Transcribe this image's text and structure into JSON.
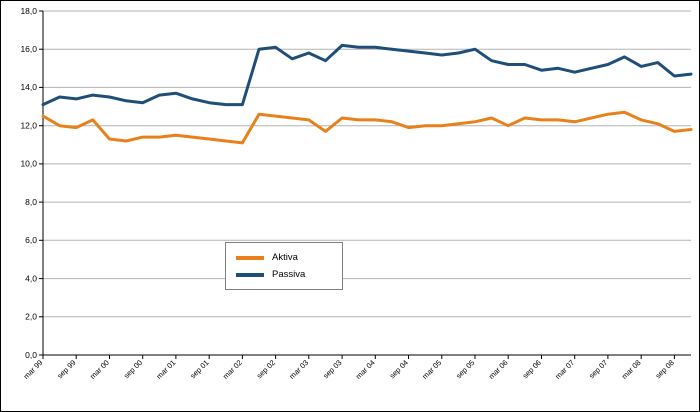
{
  "chart_data": {
    "type": "line",
    "title": "",
    "xlabel": "",
    "ylabel": "",
    "ylim": [
      0,
      18
    ],
    "y_tick_step": 2,
    "y_tick_labels": [
      "0,0",
      "2,0",
      "4,0",
      "6,0",
      "8,0",
      "10,0",
      "12,0",
      "14,0",
      "16,0",
      "18,0"
    ],
    "grid": "horizontal",
    "gridline_color": "#b3b3b3",
    "axis_color": "#000000",
    "legend_position": "center-bottom",
    "points_per_label": 2,
    "x_labels": [
      "mar 99",
      "sep 99",
      "mar 00",
      "sep 00",
      "mar 01",
      "sep 01",
      "mar 02",
      "sep 02",
      "mar 03",
      "sep 03",
      "mar 04",
      "sep 04",
      "mar 05",
      "sep 05",
      "mar 06",
      "sep 06",
      "mar 07",
      "sep 07",
      "mar 08",
      "sep 08"
    ],
    "series": [
      {
        "name": "Aktiva",
        "color": "#E8811C",
        "values": [
          12.5,
          12.0,
          11.9,
          12.3,
          11.3,
          11.2,
          11.4,
          11.4,
          11.5,
          11.4,
          11.3,
          11.2,
          11.1,
          12.6,
          12.5,
          12.4,
          12.3,
          11.7,
          12.4,
          12.3,
          12.3,
          12.2,
          11.9,
          12.0,
          12.0,
          12.1,
          12.2,
          12.4,
          12.0,
          12.4,
          12.3,
          12.3,
          12.2,
          12.4,
          12.6,
          12.7,
          12.3,
          12.1,
          11.7,
          11.8
        ]
      },
      {
        "name": "Passiva",
        "color": "#1F4E79",
        "values": [
          13.1,
          13.5,
          13.4,
          13.6,
          13.5,
          13.3,
          13.2,
          13.6,
          13.7,
          13.4,
          13.2,
          13.1,
          13.1,
          16.0,
          16.1,
          15.5,
          15.8,
          15.4,
          16.2,
          16.1,
          16.1,
          16.0,
          15.9,
          15.8,
          15.7,
          15.8,
          16.0,
          15.4,
          15.2,
          15.2,
          14.9,
          15.0,
          14.8,
          15.0,
          15.2,
          15.6,
          15.1,
          15.3,
          14.6,
          14.7
        ]
      }
    ]
  }
}
